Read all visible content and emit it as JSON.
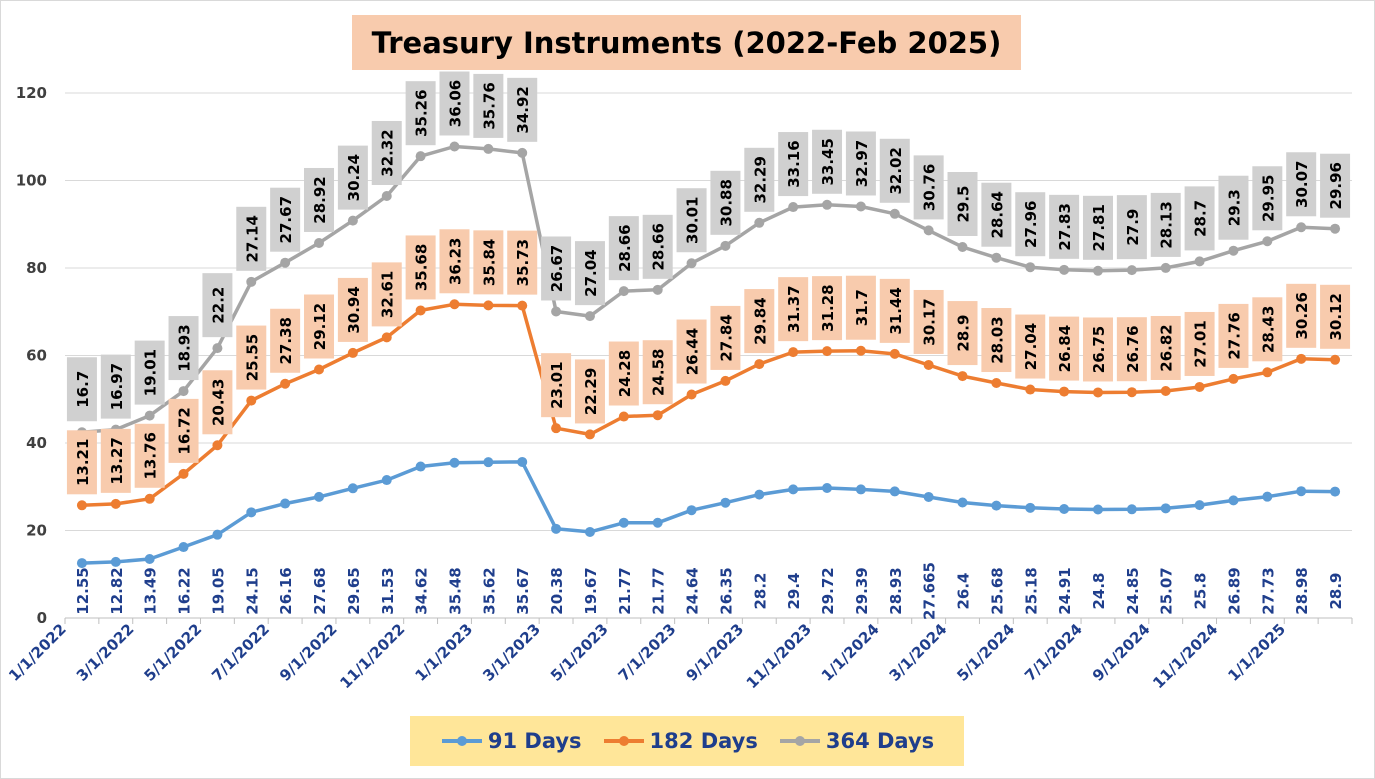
{
  "title": "Treasury Instruments (2022-Feb 2025)",
  "colors": {
    "s91": "#5b9bd5",
    "s182": "#ed7d31",
    "s364": "#a5a5a5",
    "label91": "#1f3e8c",
    "box182": "#f8cbad",
    "box364": "#d0d0d0",
    "axis": "#1f3e8c"
  },
  "chart_data": {
    "type": "line",
    "stacked": true,
    "title": "Treasury Instruments (2022-Feb 2025)",
    "ylim": [
      0,
      120
    ],
    "yticks": [
      0,
      20,
      40,
      60,
      80,
      100,
      120
    ],
    "grid": true,
    "legend_position": "bottom",
    "x": [
      "1/1/2022",
      "2/1/2022",
      "3/1/2022",
      "4/1/2022",
      "5/1/2022",
      "6/1/2022",
      "7/1/2022",
      "8/1/2022",
      "9/1/2022",
      "10/1/2022",
      "11/1/2022",
      "12/1/2022",
      "1/1/2023",
      "2/1/2023",
      "3/1/2023",
      "4/1/2023",
      "5/1/2023",
      "6/1/2023",
      "7/1/2023",
      "8/1/2023",
      "9/1/2023",
      "10/1/2023",
      "11/1/2023",
      "12/1/2023",
      "1/1/2024",
      "2/1/2024",
      "3/1/2024",
      "4/1/2024",
      "5/1/2024",
      "6/1/2024",
      "7/1/2024",
      "8/1/2024",
      "9/1/2024",
      "10/1/2024",
      "11/1/2024",
      "12/1/2024",
      "1/1/2025",
      "2/1/2025"
    ],
    "xtick_labels": [
      "1/1/2022",
      "3/1/2022",
      "5/1/2022",
      "7/1/2022",
      "9/1/2022",
      "11/1/2022",
      "1/1/2023",
      "3/1/2023",
      "5/1/2023",
      "7/1/2023",
      "9/1/2023",
      "11/1/2023",
      "1/1/2024",
      "3/1/2024",
      "5/1/2024",
      "7/1/2024",
      "9/1/2024",
      "11/1/2024",
      "1/1/2025"
    ],
    "series": [
      {
        "name": "91 Days",
        "values": [
          12.55,
          12.82,
          13.49,
          16.22,
          19.05,
          24.15,
          26.16,
          27.68,
          29.65,
          31.53,
          34.62,
          35.48,
          35.62,
          35.67,
          20.38,
          19.67,
          21.77,
          21.77,
          24.64,
          26.35,
          28.2,
          29.4,
          29.72,
          29.39,
          28.93,
          27.665,
          26.4,
          25.68,
          25.18,
          24.91,
          24.8,
          24.85,
          25.07,
          25.8,
          26.89,
          27.73,
          28.98,
          28.9
        ]
      },
      {
        "name": "182 Days",
        "values": [
          13.21,
          13.27,
          13.76,
          16.72,
          20.43,
          25.55,
          27.38,
          29.12,
          30.94,
          32.61,
          35.68,
          36.23,
          35.84,
          35.73,
          23.01,
          22.29,
          24.28,
          24.58,
          26.44,
          27.84,
          29.84,
          31.37,
          31.28,
          31.7,
          31.44,
          30.17,
          28.9,
          28.03,
          27.04,
          26.84,
          26.75,
          26.76,
          26.82,
          27.01,
          27.76,
          28.43,
          30.26,
          30.12
        ]
      },
      {
        "name": "364 Days",
        "values": [
          16.7,
          16.97,
          19.01,
          18.93,
          22.2,
          27.14,
          27.67,
          28.92,
          30.24,
          32.32,
          35.26,
          36.06,
          35.76,
          34.92,
          26.67,
          27.04,
          28.66,
          28.66,
          30.01,
          30.88,
          32.29,
          33.16,
          33.45,
          32.97,
          32.02,
          30.76,
          29.5,
          28.64,
          27.96,
          27.83,
          27.81,
          27.9,
          28.13,
          28.7,
          29.3,
          29.95,
          30.07,
          29.96
        ]
      }
    ]
  }
}
